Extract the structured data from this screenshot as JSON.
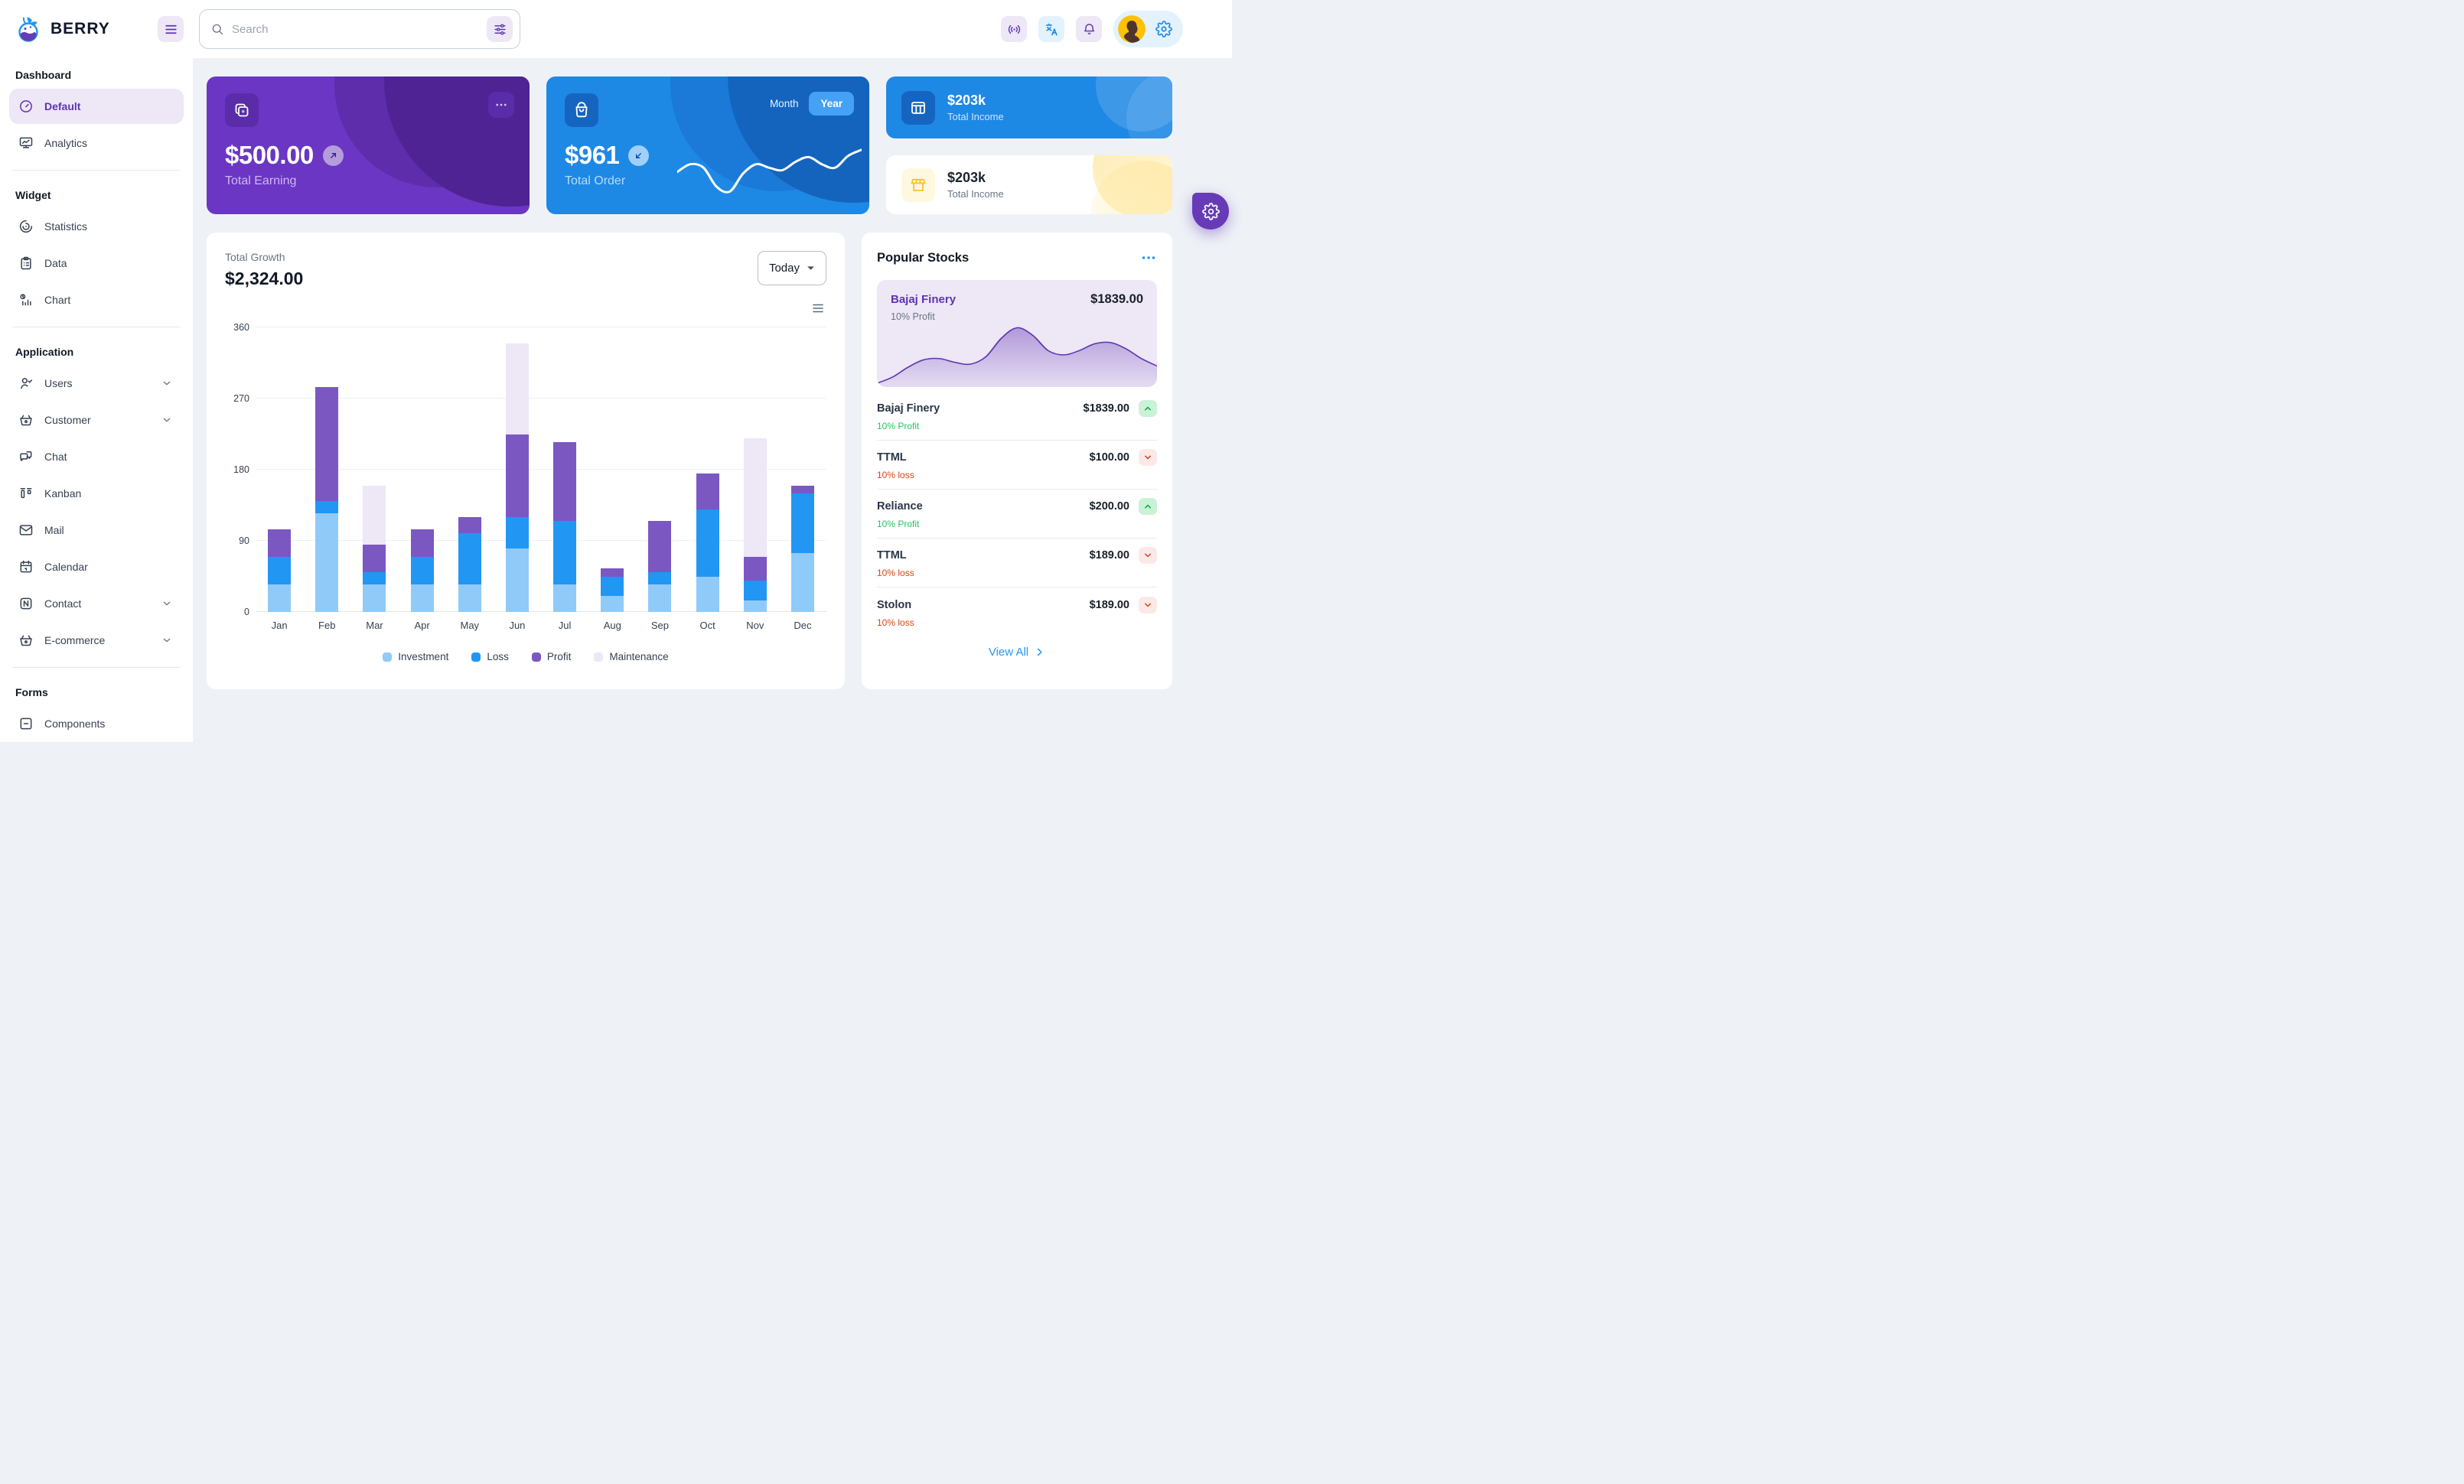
{
  "theme": {
    "purple": "#673ab7",
    "purple_dark": "#5e35b1",
    "purple_light": "#ede7f6",
    "blue": "#2196f3",
    "blue_dark": "#1565c0",
    "blue_light": "#e3f2fd",
    "background": "#eef2f6",
    "green": "#22c55e",
    "red": "#d84315",
    "amber": "#fbc02d"
  },
  "header": {
    "brand": "BERRY",
    "search": {
      "placeholder": "Search"
    },
    "icons": [
      "berry-logo-icon",
      "menu-icon",
      "search-icon",
      "sliders-icon",
      "broadcast-icon",
      "translate-icon",
      "bell-icon",
      "avatar",
      "gear-icon"
    ]
  },
  "sidebar": {
    "sections": [
      {
        "heading": "Dashboard",
        "items": [
          {
            "label": "Default",
            "icon": "gauge-icon",
            "active": true
          },
          {
            "label": "Analytics",
            "icon": "analytics-icon"
          }
        ]
      },
      {
        "heading": "Widget",
        "items": [
          {
            "label": "Statistics",
            "icon": "statistics-icon"
          },
          {
            "label": "Data",
            "icon": "clipboard-icon"
          },
          {
            "label": "Chart",
            "icon": "bar-chart-icon"
          }
        ]
      },
      {
        "heading": "Application",
        "items": [
          {
            "label": "Users",
            "icon": "users-icon",
            "expandable": true
          },
          {
            "label": "Customer",
            "icon": "basket-icon",
            "expandable": true
          },
          {
            "label": "Chat",
            "icon": "chat-icon"
          },
          {
            "label": "Kanban",
            "icon": "kanban-icon"
          },
          {
            "label": "Mail",
            "icon": "mail-icon"
          },
          {
            "label": "Calendar",
            "icon": "calendar-icon"
          },
          {
            "label": "Contact",
            "icon": "contact-icon",
            "expandable": true
          },
          {
            "label": "E-commerce",
            "icon": "basket-icon",
            "expandable": true
          }
        ]
      },
      {
        "heading": "Forms",
        "items": [
          {
            "label": "Components",
            "icon": "components-icon"
          }
        ]
      }
    ]
  },
  "earning_card": {
    "amount": "$500.00",
    "label": "Total Earning",
    "icon": "copy-icon",
    "trend_icon": "arrow-up-right-icon"
  },
  "order_card": {
    "amount": "$961",
    "label": "Total Order",
    "month_label": "Month",
    "year_label": "Year",
    "selected": "Year",
    "icon": "bag-icon",
    "trend_icon": "arrow-down-left-icon"
  },
  "income_card_blue": {
    "amount": "$203k",
    "label": "Total Income",
    "icon": "table-icon"
  },
  "income_card_light": {
    "amount": "$203k",
    "label": "Total Income",
    "icon": "storefront-icon"
  },
  "growth_card": {
    "label": "Total Growth",
    "amount": "$2,324.00",
    "range_selector": "Today"
  },
  "chart_data": [
    {
      "type": "bar",
      "stacked": true,
      "title": "Total Growth",
      "categories": [
        "Jan",
        "Feb",
        "Mar",
        "Apr",
        "May",
        "Jun",
        "Jul",
        "Aug",
        "Sep",
        "Oct",
        "Nov",
        "Dec"
      ],
      "series": [
        {
          "name": "Investment",
          "color": "#90caf9",
          "values": [
            35,
            125,
            35,
            35,
            35,
            80,
            35,
            20,
            35,
            45,
            15,
            75
          ]
        },
        {
          "name": "Loss",
          "color": "#2196f3",
          "values": [
            35,
            15,
            15,
            35,
            65,
            40,
            80,
            25,
            15,
            85,
            25,
            75
          ]
        },
        {
          "name": "Profit",
          "color": "#7b57c2",
          "values": [
            35,
            145,
            35,
            35,
            20,
            105,
            100,
            10,
            65,
            45,
            30,
            10
          ]
        },
        {
          "name": "Maintenance",
          "color": "#ede7f6",
          "values": [
            0,
            0,
            75,
            0,
            0,
            115,
            0,
            0,
            0,
            0,
            150,
            0
          ]
        }
      ],
      "xlabel": "",
      "ylabel": "",
      "ylim": [
        0,
        360
      ],
      "yticks": [
        0,
        90,
        180,
        270,
        360
      ],
      "grid": true,
      "legend_position": "bottom"
    },
    {
      "type": "line",
      "title": "Total Order sparkline (white wave, no axes)",
      "x": [
        0,
        1,
        2,
        3,
        4,
        5,
        6,
        7,
        8,
        9,
        10,
        11,
        12,
        13,
        14
      ],
      "values": [
        45,
        58,
        52,
        20,
        12,
        42,
        58,
        52,
        48,
        62,
        70,
        58,
        52,
        72,
        82
      ],
      "color": "#ffffff",
      "grid": false,
      "legend_position": "none"
    },
    {
      "type": "area",
      "title": "Bajaj Finery sparkline (purple area, no axes)",
      "x": [
        0,
        1,
        2,
        3,
        4,
        5,
        6,
        7,
        8,
        9,
        10,
        11,
        12,
        13,
        14,
        15,
        16,
        17,
        18
      ],
      "values": [
        2,
        12,
        28,
        40,
        42,
        36,
        33,
        45,
        75,
        92,
        80,
        55,
        48,
        55,
        66,
        68,
        58,
        42,
        30
      ],
      "color": "#5e35b1",
      "grid": false,
      "legend_position": "none"
    }
  ],
  "popular_stocks": {
    "title": "Popular Stocks",
    "featured": {
      "name": "Bajaj Finery",
      "price": "$1839.00",
      "change": "10% Profit"
    },
    "stocks": [
      {
        "name": "Bajaj Finery",
        "price": "$1839.00",
        "change": "10% Profit",
        "direction": "up"
      },
      {
        "name": "TTML",
        "price": "$100.00",
        "change": "10% loss",
        "direction": "down"
      },
      {
        "name": "Reliance",
        "price": "$200.00",
        "change": "10% Profit",
        "direction": "up"
      },
      {
        "name": "TTML",
        "price": "$189.00",
        "change": "10% loss",
        "direction": "down"
      },
      {
        "name": "Stolon",
        "price": "$189.00",
        "change": "10% loss",
        "direction": "down"
      }
    ],
    "view_all": "View All"
  }
}
